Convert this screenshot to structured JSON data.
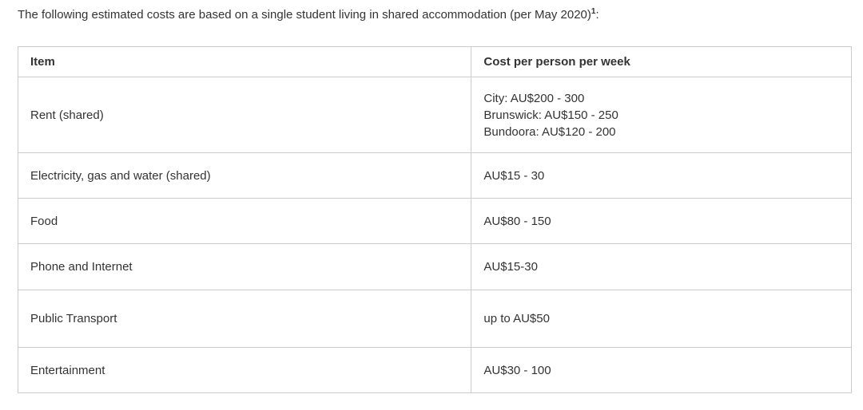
{
  "intro": {
    "text": "The following estimated costs are based on a single student living in shared accommodation (per May 2020)",
    "footnote_marker": "1",
    "suffix": ":"
  },
  "table": {
    "columns": [
      "Item",
      "Cost per person per week"
    ],
    "rows": [
      {
        "item": "Rent (shared)",
        "cost_lines": [
          "City: AU$200 - 300",
          "Brunswick: AU$150 - 250",
          "Bundoora: AU$120 - 200"
        ]
      },
      {
        "item": "Electricity, gas and water (shared)",
        "cost_lines": [
          "AU$15 - 30"
        ]
      },
      {
        "item": "Food",
        "cost_lines": [
          "AU$80 - 150"
        ]
      },
      {
        "item": "Phone and Internet",
        "cost_lines": [
          "AU$15-30"
        ]
      },
      {
        "item": "Public Transport",
        "cost_lines": [
          "up to AU$50"
        ]
      },
      {
        "item": "Entertainment",
        "cost_lines": [
          "AU$30 - 100"
        ]
      }
    ]
  },
  "colors": {
    "text": "#333333",
    "border": "#cccccc",
    "background": "#ffffff"
  }
}
